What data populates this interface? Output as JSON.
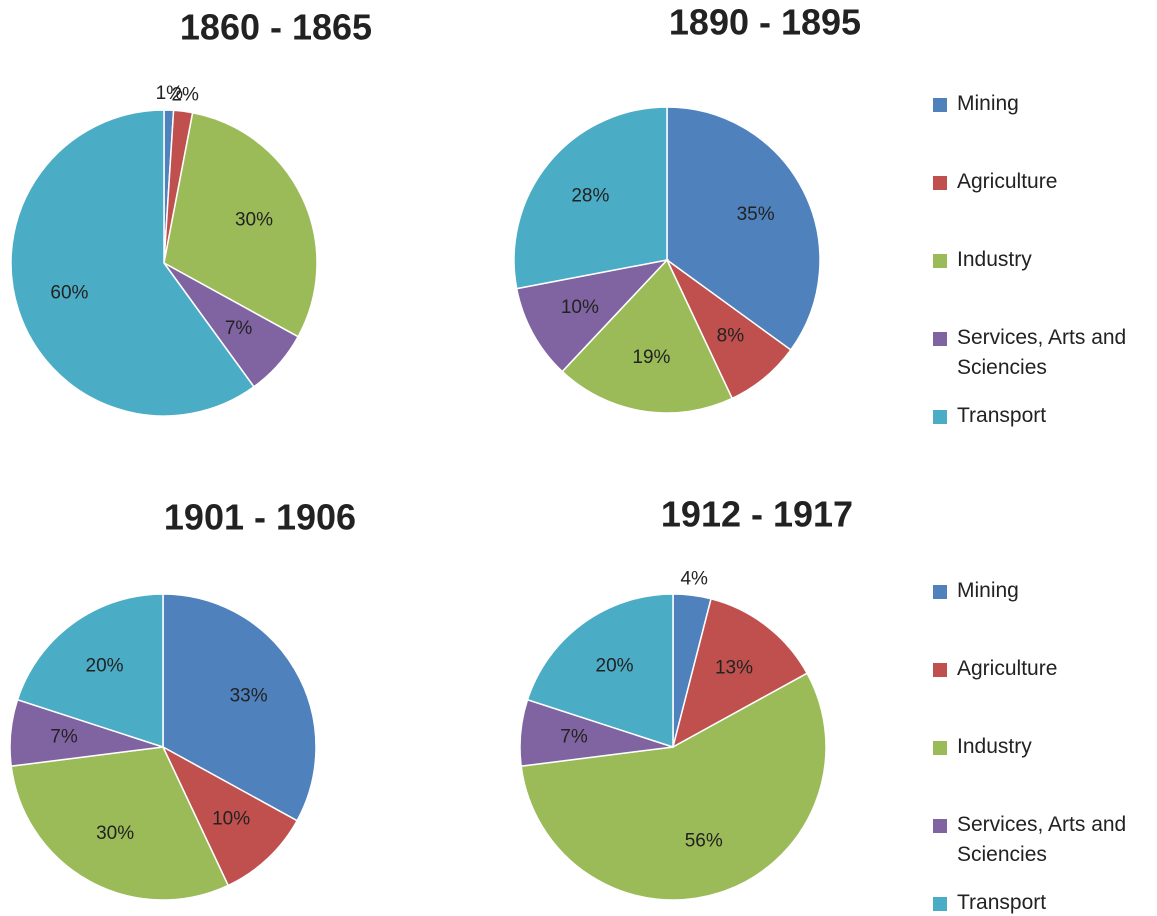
{
  "chart_data": [
    {
      "type": "pie",
      "title": "1860 - 1865",
      "categories": [
        "Mining",
        "Agriculture",
        "Industry",
        "Services, Arts and Sciencies",
        "Transport"
      ],
      "values": [
        1,
        2,
        30,
        7,
        60
      ],
      "value_labels": [
        "1%",
        "2%",
        "30%",
        "7%",
        "60%"
      ],
      "colors": [
        "#4f81bd",
        "#c0504d",
        "#9bbb59",
        "#8064a2",
        "#4bacc6"
      ]
    },
    {
      "type": "pie",
      "title": "1890 - 1895",
      "categories": [
        "Mining",
        "Agriculture",
        "Industry",
        "Services, Arts and Sciencies",
        "Transport"
      ],
      "values": [
        35,
        8,
        19,
        10,
        28
      ],
      "value_labels": [
        "35%",
        "8%",
        "19%",
        "10%",
        "28%"
      ],
      "colors": [
        "#4f81bd",
        "#c0504d",
        "#9bbb59",
        "#8064a2",
        "#4bacc6"
      ],
      "legend": "right"
    },
    {
      "type": "pie",
      "title": "1901 - 1906",
      "categories": [
        "Mining",
        "Agriculture",
        "Industry",
        "Services, Arts and Sciencies",
        "Transport"
      ],
      "values": [
        33,
        10,
        30,
        7,
        20
      ],
      "value_labels": [
        "33%",
        "10%",
        "30%",
        "7%",
        "20%"
      ],
      "colors": [
        "#4f81bd",
        "#c0504d",
        "#9bbb59",
        "#8064a2",
        "#4bacc6"
      ]
    },
    {
      "type": "pie",
      "title": "1912 - 1917",
      "categories": [
        "Mining",
        "Agriculture",
        "Industry",
        "Services, Arts and Sciencies",
        "Transport"
      ],
      "values": [
        4,
        13,
        56,
        7,
        20
      ],
      "value_labels": [
        "4%",
        "13%",
        "56%",
        "7%",
        "20%"
      ],
      "colors": [
        "#4f81bd",
        "#c0504d",
        "#9bbb59",
        "#8064a2",
        "#4bacc6"
      ],
      "legend": "right"
    }
  ]
}
